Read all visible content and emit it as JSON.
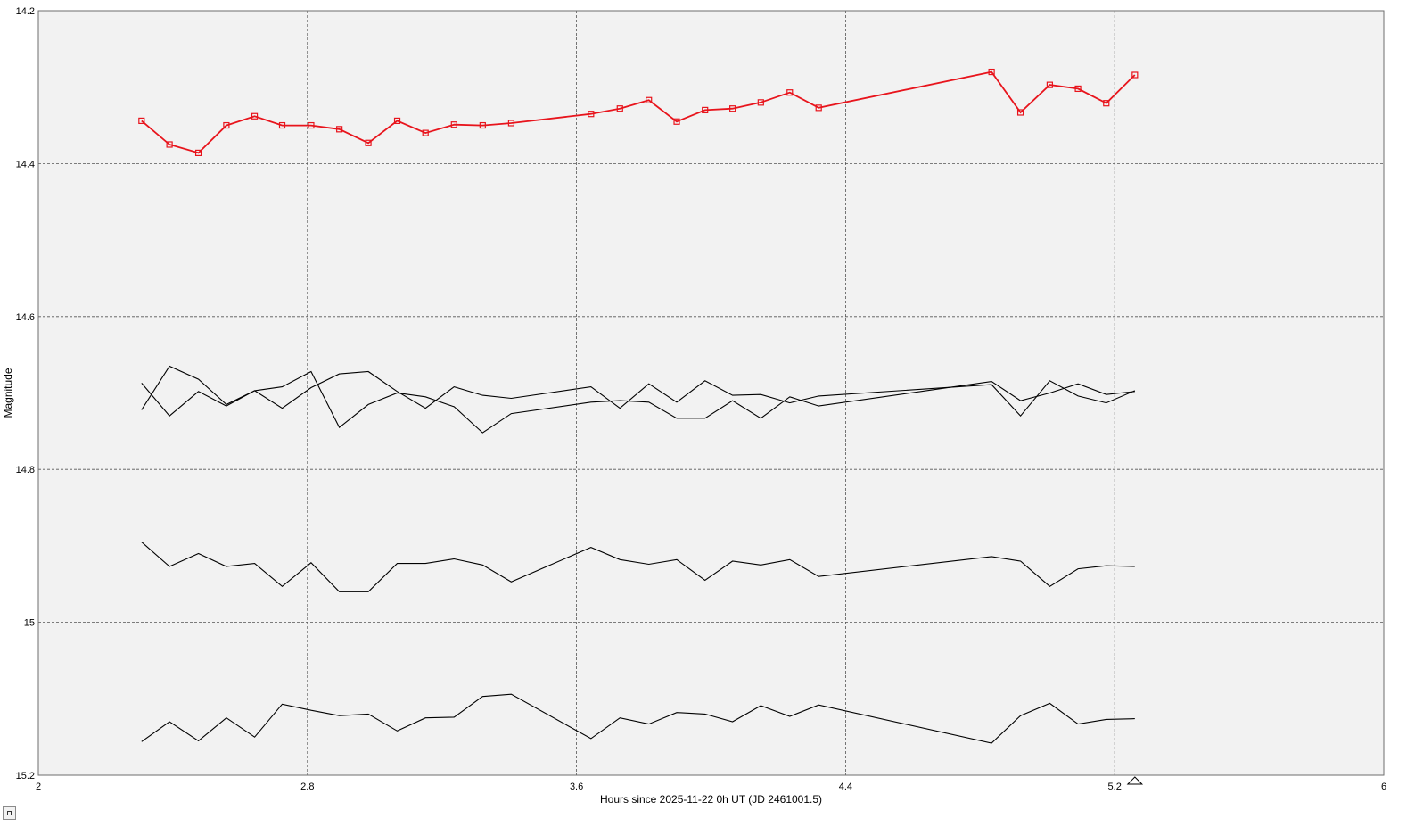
{
  "chart_data": {
    "type": "line",
    "title": "",
    "xlabel": "Hours since 2025-11-22 0h UT (JD 2461001.5)",
    "ylabel": "Magnitude",
    "xlim": [
      2,
      6
    ],
    "ylim": [
      14.2,
      15.2
    ],
    "y_inverted": true,
    "x_ticks": [
      "2",
      "2.8",
      "3.6",
      "4.4",
      "5.2",
      "6"
    ],
    "y_ticks": [
      "14.2",
      "14.4",
      "14.6",
      "14.8",
      "15",
      "15.2"
    ],
    "grid": true,
    "x": [
      2.307,
      2.39,
      2.476,
      2.559,
      2.643,
      2.725,
      2.811,
      2.895,
      2.981,
      3.067,
      3.151,
      3.236,
      3.321,
      3.406,
      3.643,
      3.729,
      3.815,
      3.898,
      3.982,
      4.064,
      4.148,
      4.234,
      4.32,
      4.834,
      4.92,
      5.007,
      5.091,
      5.175,
      5.26
    ],
    "series": [
      {
        "color": "#e8141c",
        "marker": "square",
        "values": [
          14.344,
          14.375,
          14.386,
          14.35,
          14.338,
          14.35,
          14.35,
          14.355,
          14.373,
          14.344,
          14.36,
          14.349,
          14.35,
          14.347,
          14.335,
          14.328,
          14.317,
          14.345,
          14.33,
          14.328,
          14.32,
          14.307,
          14.327,
          14.28,
          14.333,
          14.297,
          14.302,
          14.321,
          14.284
        ]
      },
      {
        "color": "#000000",
        "values": [
          14.722,
          14.665,
          14.682,
          14.715,
          14.697,
          14.692,
          14.672,
          14.745,
          14.715,
          14.7,
          14.705,
          14.718,
          14.752,
          14.727,
          14.712,
          14.71,
          14.712,
          14.733,
          14.733,
          14.71,
          14.733,
          14.705,
          14.717,
          14.685,
          14.71,
          14.7,
          14.688,
          14.702,
          14.698
        ]
      },
      {
        "color": "#000000",
        "values": [
          14.687,
          14.73,
          14.698,
          14.717,
          14.697,
          14.72,
          14.693,
          14.675,
          14.672,
          14.698,
          14.72,
          14.692,
          14.703,
          14.707,
          14.692,
          14.72,
          14.688,
          14.712,
          14.684,
          14.703,
          14.702,
          14.713,
          14.704,
          14.689,
          14.73,
          14.684,
          14.704,
          14.713,
          14.697
        ]
      },
      {
        "color": "#000000",
        "values": [
          14.895,
          14.927,
          14.91,
          14.927,
          14.923,
          14.953,
          14.922,
          14.96,
          14.96,
          14.923,
          14.923,
          14.917,
          14.925,
          14.947,
          14.902,
          14.918,
          14.924,
          14.918,
          14.945,
          14.92,
          14.925,
          14.918,
          14.94,
          14.914,
          14.92,
          14.953,
          14.93,
          14.926,
          14.927
        ]
      },
      {
        "color": "#000000",
        "values": [
          15.156,
          15.13,
          15.155,
          15.125,
          15.15,
          15.107,
          15.115,
          15.122,
          15.12,
          15.142,
          15.125,
          15.124,
          15.097,
          15.094,
          15.152,
          15.125,
          15.133,
          15.118,
          15.12,
          15.13,
          15.109,
          15.123,
          15.108,
          15.158,
          15.122,
          15.106,
          15.133,
          15.127,
          15.126
        ]
      }
    ],
    "annotations": [
      {
        "shape": "triangle-outline",
        "x": 5.26
      }
    ]
  },
  "colors": {
    "plot_background": "#f2f2f2",
    "frame": "#6e6e6e",
    "grid": "#555555"
  },
  "controls": {
    "corner_button_icon": "square-icon"
  }
}
